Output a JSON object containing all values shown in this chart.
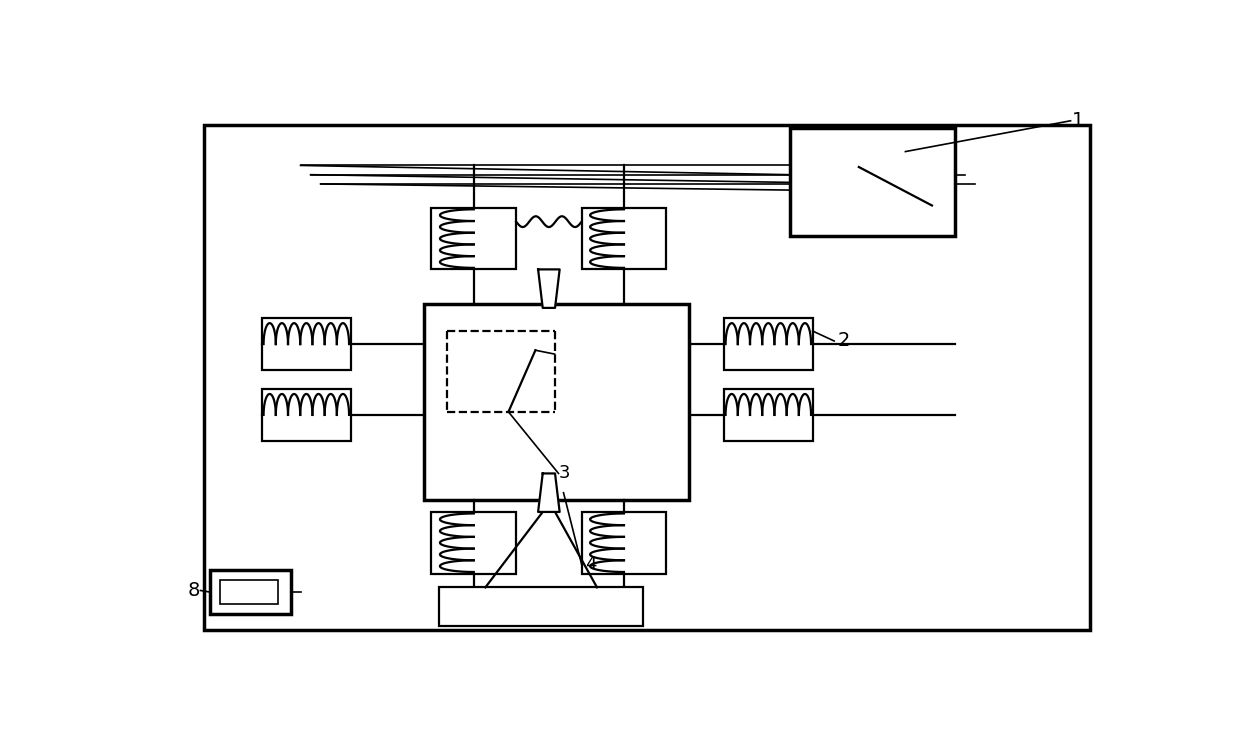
{
  "bg_color": "#ffffff",
  "line_color": "#000000",
  "fig_width": 12.4,
  "fig_height": 7.37,
  "dpi": 100
}
